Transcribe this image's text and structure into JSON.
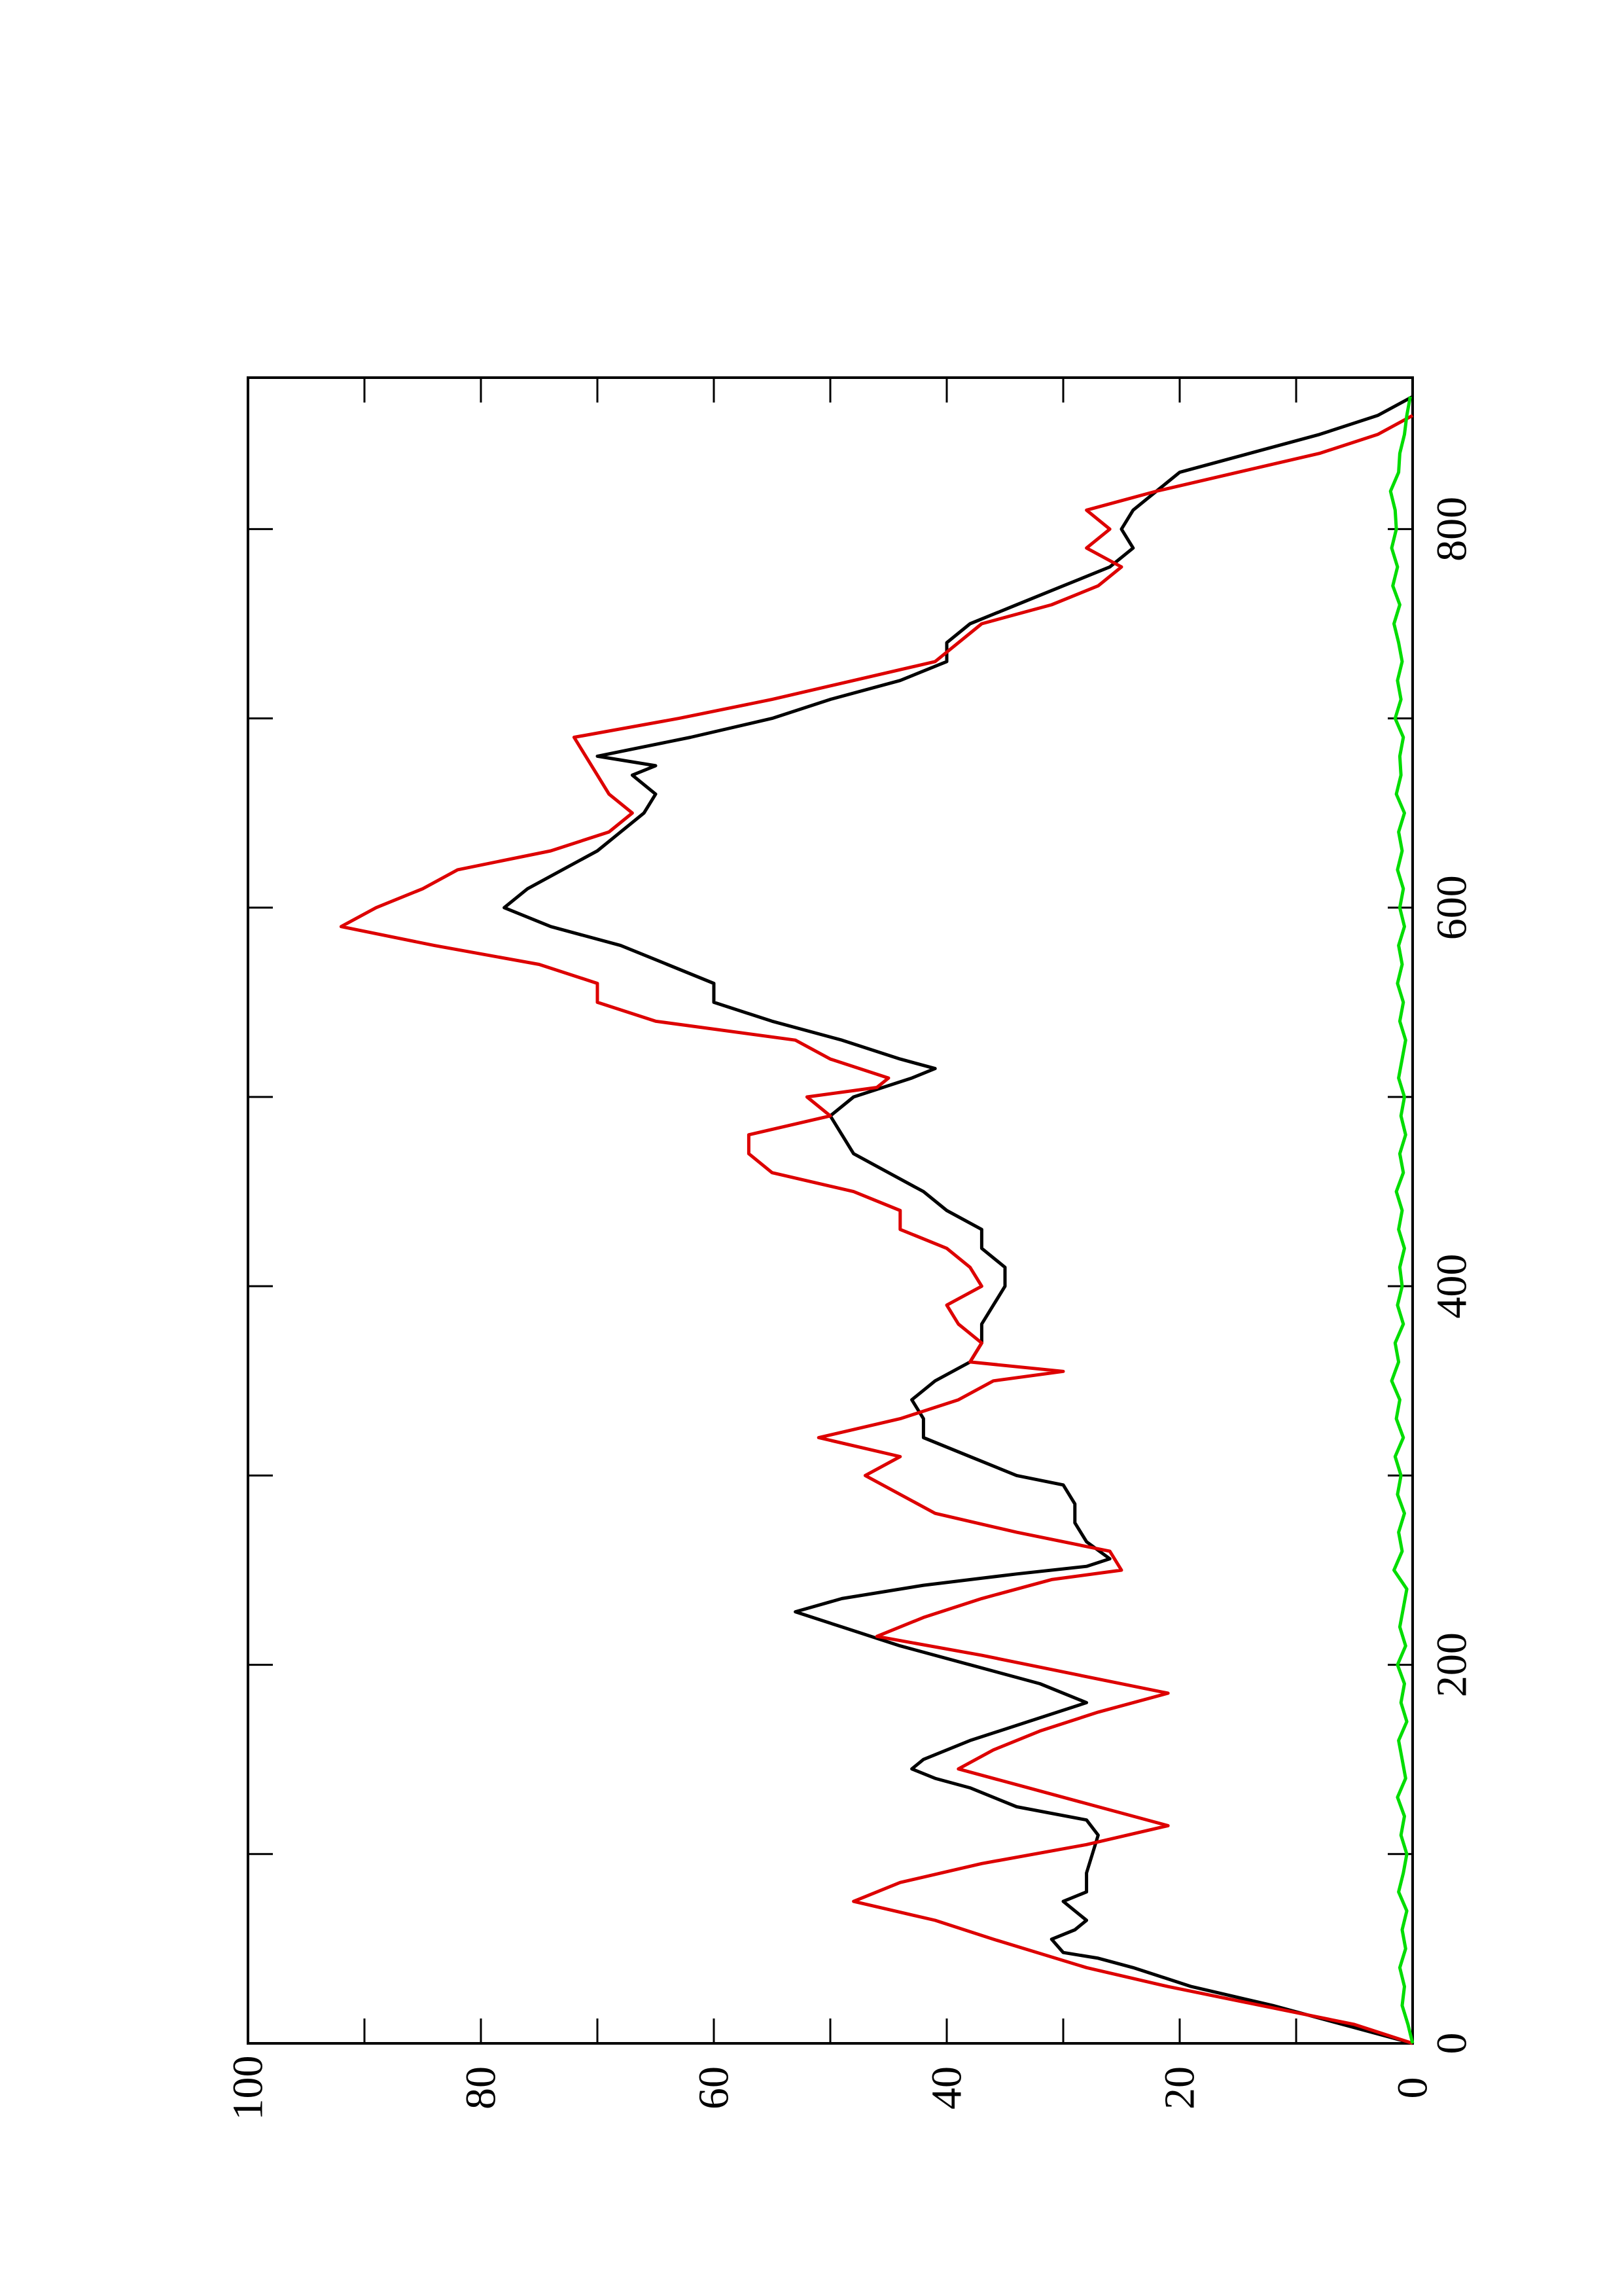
{
  "chart_data": {
    "type": "line",
    "title": "",
    "xlabel": "",
    "ylabel": "",
    "xlim": [
      0,
      880
    ],
    "ylim": [
      0,
      100
    ],
    "orientation": "rotated-90-ccw",
    "grid": false,
    "legend": "none",
    "x_ticks": [
      "0",
      "200",
      "400",
      "600",
      "800"
    ],
    "y_ticks": [
      "0",
      "20",
      "40",
      "60",
      "80",
      "100"
    ],
    "colors": {
      "series_a": "#000000",
      "series_b": "#dd0000",
      "series_c": "#00dd00",
      "axes": "#000000"
    },
    "series": [
      {
        "color": "#000000",
        "points": [
          [
            0,
            0
          ],
          [
            10,
            6
          ],
          [
            20,
            12
          ],
          [
            30,
            19
          ],
          [
            40,
            24
          ],
          [
            45,
            27
          ],
          [
            48,
            30
          ],
          [
            55,
            31
          ],
          [
            60,
            29
          ],
          [
            65,
            28
          ],
          [
            70,
            29
          ],
          [
            75,
            30
          ],
          [
            80,
            28
          ],
          [
            90,
            28
          ],
          [
            100,
            27.5
          ],
          [
            110,
            27
          ],
          [
            118,
            28
          ],
          [
            125,
            34
          ],
          [
            135,
            38
          ],
          [
            140,
            41
          ],
          [
            145,
            43
          ],
          [
            150,
            42
          ],
          [
            160,
            38
          ],
          [
            170,
            33
          ],
          [
            180,
            28
          ],
          [
            190,
            32
          ],
          [
            200,
            38
          ],
          [
            210,
            44
          ],
          [
            220,
            49
          ],
          [
            228,
            53
          ],
          [
            235,
            49
          ],
          [
            242,
            42
          ],
          [
            248,
            34
          ],
          [
            252,
            28
          ],
          [
            256,
            26
          ],
          [
            265,
            28
          ],
          [
            275,
            29
          ],
          [
            285,
            29
          ],
          [
            295,
            30
          ],
          [
            300,
            34
          ],
          [
            310,
            38
          ],
          [
            320,
            42
          ],
          [
            330,
            42
          ],
          [
            340,
            43
          ],
          [
            350,
            41
          ],
          [
            360,
            38
          ],
          [
            370,
            37
          ],
          [
            380,
            37
          ],
          [
            390,
            36
          ],
          [
            400,
            35
          ],
          [
            410,
            35
          ],
          [
            420,
            37
          ],
          [
            430,
            37
          ],
          [
            440,
            40
          ],
          [
            450,
            42
          ],
          [
            460,
            45
          ],
          [
            470,
            48
          ],
          [
            480,
            49
          ],
          [
            490,
            50
          ],
          [
            500,
            48
          ],
          [
            510,
            43
          ],
          [
            515,
            41
          ],
          [
            520,
            44
          ],
          [
            530,
            49
          ],
          [
            540,
            55
          ],
          [
            550,
            60
          ],
          [
            560,
            60
          ],
          [
            570,
            64
          ],
          [
            580,
            68
          ],
          [
            590,
            74
          ],
          [
            600,
            78
          ],
          [
            610,
            76
          ],
          [
            620,
            73
          ],
          [
            630,
            70
          ],
          [
            640,
            68
          ],
          [
            650,
            66
          ],
          [
            660,
            65
          ],
          [
            670,
            67
          ],
          [
            675,
            65
          ],
          [
            680,
            70
          ],
          [
            690,
            62
          ],
          [
            700,
            55
          ],
          [
            710,
            50
          ],
          [
            720,
            44
          ],
          [
            730,
            40
          ],
          [
            740,
            40
          ],
          [
            750,
            38
          ],
          [
            760,
            34
          ],
          [
            770,
            30
          ],
          [
            780,
            26
          ],
          [
            790,
            24
          ],
          [
            800,
            25
          ],
          [
            810,
            24
          ],
          [
            820,
            22
          ],
          [
            830,
            20
          ],
          [
            840,
            14
          ],
          [
            850,
            8
          ],
          [
            860,
            3
          ],
          [
            870,
            0
          ]
        ]
      },
      {
        "color": "#dd0000",
        "points": [
          [
            0,
            0
          ],
          [
            10,
            5
          ],
          [
            20,
            13
          ],
          [
            30,
            21
          ],
          [
            40,
            28
          ],
          [
            55,
            36
          ],
          [
            65,
            41
          ],
          [
            75,
            48
          ],
          [
            85,
            44
          ],
          [
            95,
            37
          ],
          [
            105,
            28
          ],
          [
            115,
            21
          ],
          [
            125,
            27
          ],
          [
            135,
            33
          ],
          [
            145,
            39
          ],
          [
            155,
            36
          ],
          [
            165,
            32
          ],
          [
            175,
            27
          ],
          [
            185,
            21
          ],
          [
            195,
            29
          ],
          [
            205,
            37
          ],
          [
            215,
            46
          ],
          [
            225,
            42
          ],
          [
            235,
            37
          ],
          [
            245,
            31
          ],
          [
            250,
            25
          ],
          [
            260,
            26
          ],
          [
            270,
            34
          ],
          [
            280,
            41
          ],
          [
            290,
            44
          ],
          [
            300,
            47
          ],
          [
            310,
            44
          ],
          [
            320,
            51
          ],
          [
            330,
            44
          ],
          [
            340,
            39
          ],
          [
            350,
            36
          ],
          [
            355,
            30
          ],
          [
            360,
            38
          ],
          [
            370,
            37
          ],
          [
            380,
            39
          ],
          [
            390,
            40
          ],
          [
            400,
            37
          ],
          [
            410,
            38
          ],
          [
            420,
            40
          ],
          [
            430,
            44
          ],
          [
            440,
            44
          ],
          [
            450,
            48
          ],
          [
            460,
            55
          ],
          [
            470,
            57
          ],
          [
            480,
            57
          ],
          [
            490,
            50
          ],
          [
            500,
            52
          ],
          [
            505,
            46
          ],
          [
            510,
            45
          ],
          [
            520,
            50
          ],
          [
            530,
            53
          ],
          [
            540,
            65
          ],
          [
            550,
            70
          ],
          [
            560,
            70
          ],
          [
            570,
            75
          ],
          [
            580,
            84
          ],
          [
            590,
            92
          ],
          [
            600,
            89
          ],
          [
            610,
            85
          ],
          [
            620,
            82
          ],
          [
            630,
            74
          ],
          [
            640,
            69
          ],
          [
            650,
            67
          ],
          [
            660,
            69
          ],
          [
            670,
            70
          ],
          [
            680,
            71
          ],
          [
            690,
            72
          ],
          [
            700,
            63
          ],
          [
            710,
            55
          ],
          [
            720,
            48
          ],
          [
            730,
            41
          ],
          [
            740,
            39
          ],
          [
            750,
            37
          ],
          [
            760,
            31
          ],
          [
            770,
            27
          ],
          [
            780,
            25
          ],
          [
            790,
            28
          ],
          [
            800,
            26
          ],
          [
            810,
            28
          ],
          [
            820,
            22
          ],
          [
            830,
            15
          ],
          [
            840,
            8
          ],
          [
            850,
            3
          ],
          [
            860,
            0
          ]
        ]
      },
      {
        "color": "#00dd00",
        "points": [
          [
            0,
            0
          ],
          [
            10,
            0.4
          ],
          [
            20,
            0.9
          ],
          [
            30,
            0.7
          ],
          [
            40,
            1.1
          ],
          [
            50,
            0.6
          ],
          [
            60,
            0.9
          ],
          [
            70,
            0.5
          ],
          [
            80,
            1.2
          ],
          [
            90,
            0.8
          ],
          [
            100,
            0.5
          ],
          [
            110,
            1
          ],
          [
            120,
            0.7
          ],
          [
            130,
            1.3
          ],
          [
            140,
            0.6
          ],
          [
            150,
            0.9
          ],
          [
            160,
            1.2
          ],
          [
            170,
            0.5
          ],
          [
            180,
            1
          ],
          [
            190,
            0.7
          ],
          [
            200,
            1.3
          ],
          [
            210,
            0.6
          ],
          [
            220,
            1.1
          ],
          [
            230,
            0.8
          ],
          [
            240,
            0.5
          ],
          [
            250,
            1.6
          ],
          [
            260,
            0.9
          ],
          [
            270,
            1.2
          ],
          [
            280,
            0.7
          ],
          [
            290,
            1.3
          ],
          [
            300,
            1
          ],
          [
            310,
            1.5
          ],
          [
            320,
            0.8
          ],
          [
            330,
            1.4
          ],
          [
            340,
            1.1
          ],
          [
            350,
            1.8
          ],
          [
            360,
            1.2
          ],
          [
            370,
            1.5
          ],
          [
            380,
            0.8
          ],
          [
            390,
            1.3
          ],
          [
            400,
            0.9
          ],
          [
            410,
            1.1
          ],
          [
            420,
            0.7
          ],
          [
            430,
            1.2
          ],
          [
            440,
            0.9
          ],
          [
            450,
            1.4
          ],
          [
            460,
            0.8
          ],
          [
            470,
            1.1
          ],
          [
            480,
            0.6
          ],
          [
            490,
            1
          ],
          [
            500,
            0.7
          ],
          [
            510,
            1.2
          ],
          [
            520,
            0.9
          ],
          [
            530,
            0.6
          ],
          [
            540,
            1.1
          ],
          [
            550,
            0.8
          ],
          [
            560,
            1.3
          ],
          [
            570,
            0.9
          ],
          [
            580,
            1.2
          ],
          [
            590,
            0.7
          ],
          [
            600,
            1.1
          ],
          [
            610,
            0.8
          ],
          [
            620,
            1.3
          ],
          [
            630,
            0.9
          ],
          [
            640,
            1.2
          ],
          [
            650,
            0.7
          ],
          [
            660,
            1.4
          ],
          [
            670,
            1
          ],
          [
            680,
            1.1
          ],
          [
            690,
            0.8
          ],
          [
            700,
            1.5
          ],
          [
            710,
            1
          ],
          [
            720,
            1.3
          ],
          [
            730,
            0.9
          ],
          [
            740,
            1.2
          ],
          [
            750,
            1.6
          ],
          [
            760,
            1.1
          ],
          [
            770,
            1.7
          ],
          [
            780,
            1.3
          ],
          [
            790,
            1.8
          ],
          [
            800,
            1.4
          ],
          [
            810,
            1.5
          ],
          [
            820,
            1.9
          ],
          [
            830,
            1.2
          ],
          [
            840,
            1.1
          ],
          [
            850,
            0.7
          ],
          [
            860,
            0.5
          ],
          [
            870,
            0.2
          ]
        ]
      }
    ]
  }
}
